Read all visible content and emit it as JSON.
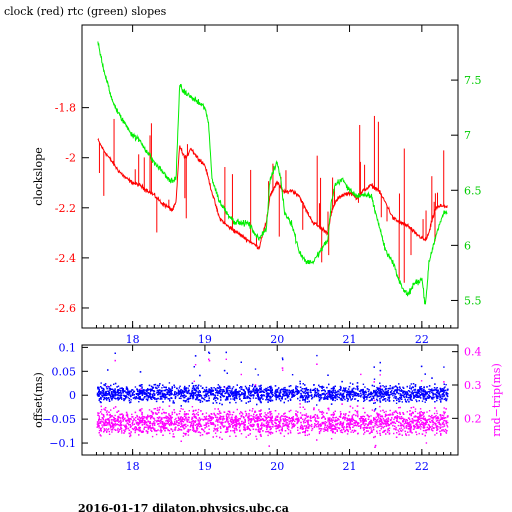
{
  "header": {
    "title": "clock (red) rtc (green) slopes"
  },
  "footer": {
    "text": "2016-01-17  dilaton.physics.ubc.ca"
  },
  "chart_data": [
    {
      "type": "line",
      "title": "clock (red) rtc (green) slopes",
      "ylabel": "clockslope",
      "x_ticks": [
        18,
        19,
        20,
        21,
        22
      ],
      "xlim": [
        17.3,
        22.5
      ],
      "ylim": [
        -2.68,
        -1.47
      ],
      "y_ticks": [
        -1.8,
        -2,
        -2.2,
        -2.4,
        -2.6
      ],
      "y_tick_labels": [
        "-1.8",
        "-2",
        "-2.2",
        "-2.4",
        "-2.6"
      ],
      "y2lim": [
        5.25,
        8.0
      ],
      "y2_ticks": [
        5.5,
        6,
        6.5,
        7,
        7.5
      ],
      "y2_tick_labels": [
        "5.5",
        "6",
        "6.5",
        "7",
        "7.5"
      ],
      "colors": {
        "clock": "#ff0000",
        "rtc": "#00ee00",
        "frame": "#000000"
      },
      "series": [
        {
          "axis": "left",
          "color": "#ff0000",
          "x": [
            17.52,
            17.6,
            17.7,
            17.8,
            17.9,
            18.0,
            18.1,
            18.2,
            18.3,
            18.4,
            18.5,
            18.55,
            18.6,
            18.65,
            18.7,
            18.75,
            18.8,
            18.9,
            19.0,
            19.1,
            19.2,
            19.3,
            19.4,
            19.5,
            19.6,
            19.7,
            19.75,
            19.8,
            19.85,
            19.9,
            20.0,
            20.1,
            20.2,
            20.3,
            20.4,
            20.5,
            20.6,
            20.7,
            20.75,
            20.8,
            20.85,
            20.9,
            21.0,
            21.1,
            21.2,
            21.3,
            21.4,
            21.5,
            21.6,
            21.7,
            21.8,
            21.9,
            22.0,
            22.05,
            22.1,
            22.15,
            22.2,
            22.3,
            22.35
          ],
          "y": [
            -1.93,
            -1.97,
            -2.01,
            -2.05,
            -2.08,
            -2.1,
            -2.11,
            -2.13,
            -2.15,
            -2.18,
            -2.2,
            -2.21,
            -2.18,
            -1.95,
            -1.99,
            -2.0,
            -1.96,
            -2.0,
            -2.03,
            -2.14,
            -2.24,
            -2.27,
            -2.29,
            -2.31,
            -2.33,
            -2.35,
            -2.36,
            -2.3,
            -2.26,
            -2.15,
            -2.1,
            -2.14,
            -2.13,
            -2.15,
            -2.21,
            -2.26,
            -2.28,
            -2.3,
            -2.22,
            -2.18,
            -2.16,
            -2.15,
            -2.14,
            -2.16,
            -2.13,
            -2.11,
            -2.13,
            -2.18,
            -2.24,
            -2.26,
            -2.27,
            -2.3,
            -2.32,
            -2.33,
            -2.3,
            -2.24,
            -2.2,
            -2.19,
            -2.2
          ]
        },
        {
          "axis": "right",
          "color": "#00ee00",
          "x": [
            17.52,
            17.6,
            17.7,
            17.8,
            17.9,
            18.0,
            18.1,
            18.2,
            18.3,
            18.4,
            18.5,
            18.55,
            18.6,
            18.65,
            18.7,
            18.8,
            18.9,
            19.0,
            19.05,
            19.1,
            19.2,
            19.3,
            19.4,
            19.5,
            19.6,
            19.7,
            19.75,
            19.8,
            19.85,
            19.9,
            20.0,
            20.05,
            20.1,
            20.2,
            20.3,
            20.4,
            20.5,
            20.6,
            20.7,
            20.75,
            20.8,
            20.9,
            21.0,
            21.1,
            21.2,
            21.3,
            21.4,
            21.5,
            21.6,
            21.7,
            21.8,
            21.9,
            22.0,
            22.05,
            22.1,
            22.2,
            22.3,
            22.35
          ],
          "y": [
            7.85,
            7.6,
            7.35,
            7.2,
            7.1,
            7.0,
            6.95,
            6.85,
            6.75,
            6.68,
            6.6,
            6.58,
            6.6,
            7.45,
            7.4,
            7.35,
            7.3,
            7.25,
            7.1,
            6.6,
            6.4,
            6.3,
            6.22,
            6.2,
            6.2,
            6.1,
            6.05,
            6.12,
            6.15,
            6.6,
            6.75,
            6.6,
            6.3,
            6.2,
            5.95,
            5.85,
            5.85,
            5.95,
            6.05,
            6.4,
            6.55,
            6.6,
            6.5,
            6.45,
            6.45,
            6.45,
            6.2,
            5.95,
            5.85,
            5.65,
            5.55,
            5.65,
            5.7,
            5.45,
            5.85,
            6.1,
            6.3,
            6.3
          ]
        }
      ]
    },
    {
      "type": "scatter",
      "ylabel": "offset(ms)",
      "y2label": "rnd−trip(ms)",
      "x_ticks": [
        18,
        19,
        20,
        21,
        22
      ],
      "xlim": [
        17.3,
        22.5
      ],
      "ylim": [
        -0.125,
        0.105
      ],
      "y_ticks": [
        0.1,
        0.05,
        0,
        -0.05,
        -0.1
      ],
      "y_tick_labels": [
        "0.1",
        "0.05",
        "0",
        "−0.05",
        "−0.1"
      ],
      "y2lim": [
        0.09,
        0.42
      ],
      "y2_ticks": [
        0.2,
        0.3,
        0.4
      ],
      "y2_tick_labels": [
        "0.2",
        "0.3",
        "0.4"
      ],
      "colors": {
        "offset": "#0000ff",
        "rndtrip": "#ff00ff",
        "frame": "#000000"
      },
      "series": [
        {
          "axis": "left",
          "color": "#0000ff",
          "x_range": [
            17.5,
            22.35
          ],
          "center": 0.005,
          "spread": 0.025
        },
        {
          "axis": "right",
          "color": "#ff00ff",
          "x_range": [
            17.5,
            22.35
          ],
          "center": 0.19,
          "spread": 0.055
        }
      ]
    }
  ]
}
